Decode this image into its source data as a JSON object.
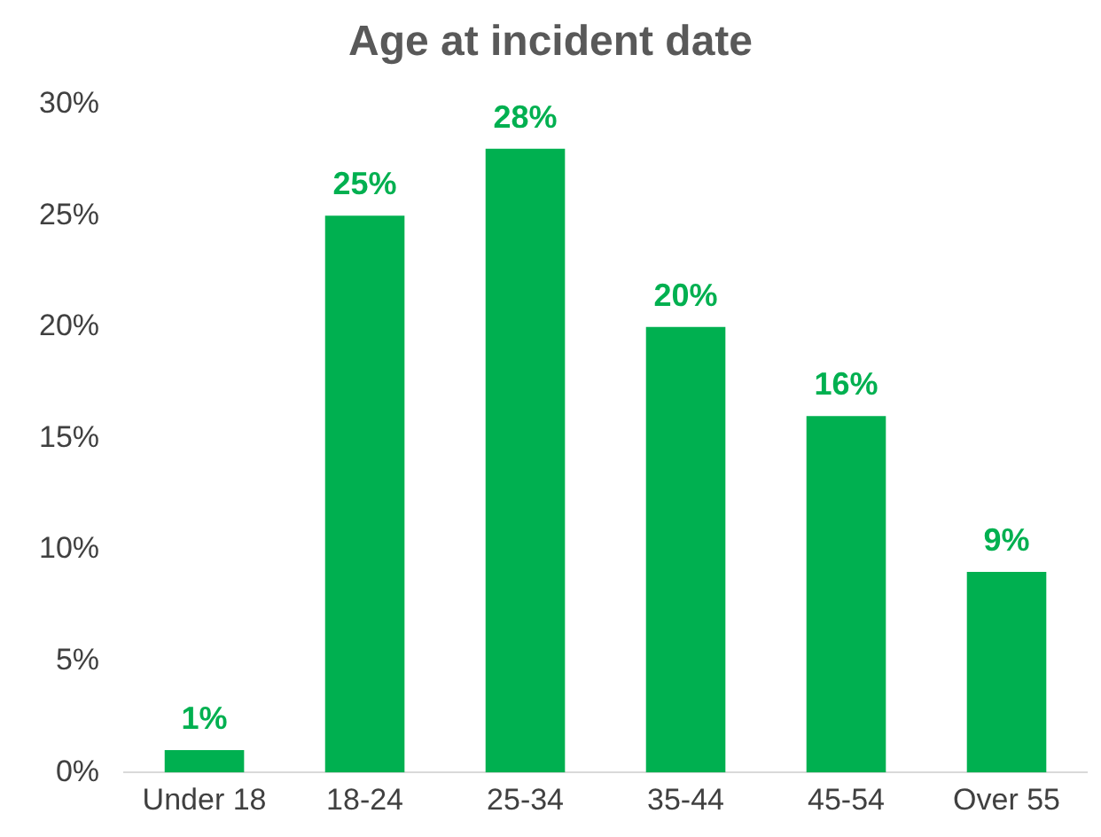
{
  "chart_data": {
    "type": "bar",
    "title": "Age at incident date",
    "categories": [
      "Under 18",
      "18-24",
      "25-34",
      "35-44",
      "45-54",
      "Over 55"
    ],
    "values": [
      1,
      25,
      28,
      20,
      16,
      9
    ],
    "value_labels": [
      "1%",
      "25%",
      "28%",
      "20%",
      "16%",
      "9%"
    ],
    "color": "#00b050",
    "ylim": [
      0,
      30
    ],
    "yticks": [
      {
        "value": 0,
        "label": "0%"
      },
      {
        "value": 5,
        "label": "5%"
      },
      {
        "value": 10,
        "label": "10%"
      },
      {
        "value": 15,
        "label": "15%"
      },
      {
        "value": 20,
        "label": "20%"
      },
      {
        "value": 25,
        "label": "25%"
      },
      {
        "value": 30,
        "label": "30%"
      }
    ],
    "grid": false,
    "legend": false
  }
}
